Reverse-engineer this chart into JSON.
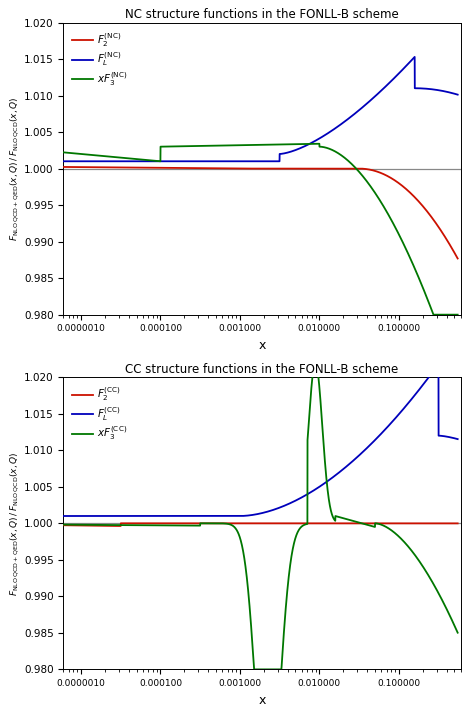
{
  "nc_title": "NC structure functions in the FONLL-B scheme",
  "cc_title": "CC structure functions in the FONLL-B scheme",
  "ylabel": "F_NLO QCD+QED(x,Q) / F_NLO QCD(x,Q)",
  "xlabel": "x",
  "ylim": [
    0.98,
    1.02
  ],
  "xmin": 6e-06,
  "xmax": 0.6,
  "colors": {
    "F2": "#cc1100",
    "FL": "#0000bb",
    "xF3": "#007700"
  },
  "line_width": 1.3,
  "ref_line_color": "#888888",
  "background_color": "#ffffff"
}
